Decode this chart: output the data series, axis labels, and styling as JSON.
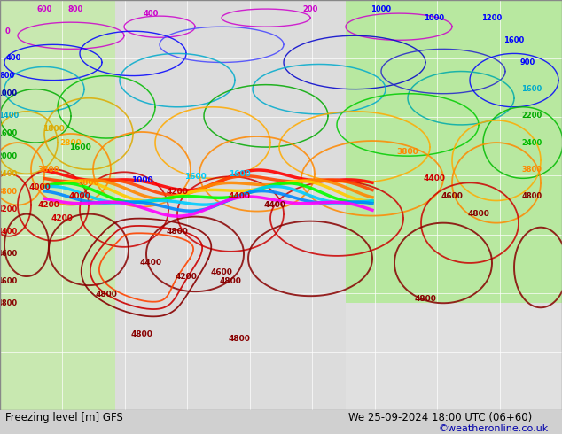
{
  "title_left": "Freezing level [m] GFS",
  "title_right": "We 25-09-2024 18:00 UTC (06+60)",
  "copyright": "©weatheronline.co.uk",
  "bg_color": "#d0d0d0",
  "map_bg_light": "#e8e8e8",
  "bottom_bar_color": "#c8c8c8",
  "figsize": [
    6.34,
    4.9
  ],
  "dpi": 100,
  "text_color_left": "#000000",
  "text_color_right": "#000000",
  "copyright_color": "#0000aa",
  "grid_color": "#ffffff",
  "grid_alpha": 0.7,
  "font_size_bottom": 8.5,
  "font_size_copyright": 8.0
}
